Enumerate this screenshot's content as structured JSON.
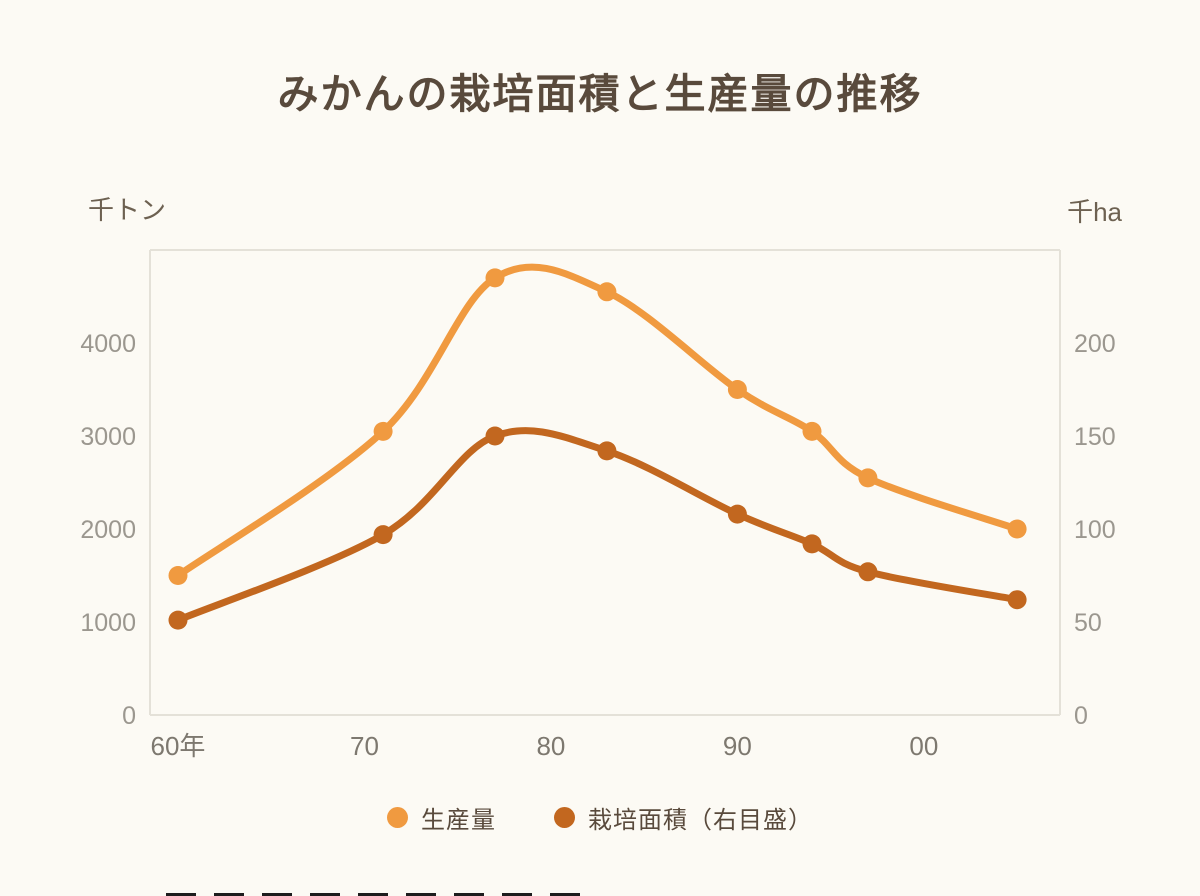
{
  "chart_data": {
    "type": "line",
    "title": "みかんの栽培面積と生産量の推移",
    "x": [
      1960,
      1971,
      1977,
      1983,
      1990,
      1994,
      1997,
      2005
    ],
    "x_domain": [
      1958.5,
      2007.3
    ],
    "x_ticks": [
      {
        "value": 1960,
        "label": "60年"
      },
      {
        "value": 1970,
        "label": "70"
      },
      {
        "value": 1980,
        "label": "80"
      },
      {
        "value": 1990,
        "label": "90"
      },
      {
        "value": 2000,
        "label": "00"
      }
    ],
    "left_axis": {
      "unit": "千トン",
      "ticks": [
        0,
        1000,
        2000,
        3000,
        4000
      ],
      "range": [
        0,
        5000
      ]
    },
    "right_axis": {
      "unit": "千ha",
      "ticks": [
        0,
        50,
        100,
        150,
        200
      ],
      "range": [
        0,
        250
      ]
    },
    "series": [
      {
        "name": "生産量",
        "axis": "left",
        "color": "#F09A40",
        "values": [
          1500,
          3050,
          4700,
          4550,
          3500,
          3050,
          2550,
          2000
        ]
      },
      {
        "name": "栽培面積（右目盛）",
        "axis": "right",
        "color": "#C2671F",
        "values": [
          51,
          97,
          150,
          142,
          108,
          92,
          77,
          62
        ]
      }
    ],
    "grid": false,
    "legend_position": "bottom",
    "frame_color": "#e4e1d8"
  }
}
